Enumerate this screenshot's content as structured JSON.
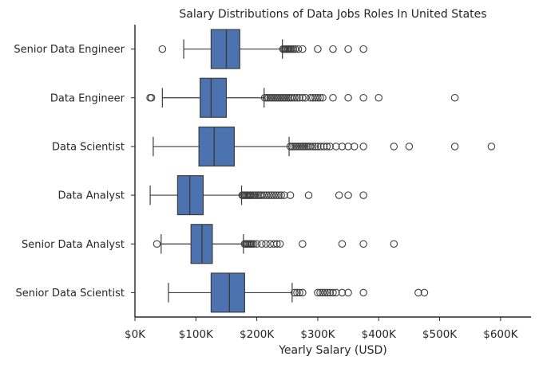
{
  "chart_data": {
    "type": "boxplot",
    "orientation": "horizontal",
    "title": "Salary Distributions of Data Jobs Roles In United States",
    "xlabel": "Yearly Salary (USD)",
    "ylabel": "",
    "xlim": [
      0,
      650000
    ],
    "xticks": [
      0,
      100000,
      200000,
      300000,
      400000,
      500000,
      600000
    ],
    "xtick_labels": [
      "$0K",
      "$100K",
      "$200K",
      "$300K",
      "$400K",
      "$500K",
      "$600K"
    ],
    "grid": false,
    "box_color": "#4c72b0",
    "edge_color": "#3d3d3d",
    "categories": [
      "Senior Data Engineer",
      "Data Engineer",
      "Data Scientist",
      "Data Analyst",
      "Senior Data Analyst",
      "Senior Data Scientist"
    ],
    "boxes": [
      {
        "category": "Senior Data Engineer",
        "whisker_low": 80000,
        "q1": 125000,
        "median": 150000,
        "q3": 172000,
        "whisker_high": 242000,
        "outliers": [
          45000,
          243000,
          245000,
          247000,
          249000,
          251000,
          253000,
          255000,
          257000,
          260000,
          263000,
          268000,
          275000,
          300000,
          325000,
          350000,
          375000
        ]
      },
      {
        "category": "Data Engineer",
        "whisker_low": 45000,
        "q1": 107000,
        "median": 125000,
        "q3": 150000,
        "whisker_high": 212000,
        "outliers": [
          25000,
          27000,
          213000,
          216000,
          219000,
          222000,
          225000,
          228000,
          231000,
          234000,
          237000,
          240000,
          243000,
          246000,
          249000,
          252000,
          255000,
          258000,
          262000,
          266000,
          270000,
          275000,
          280000,
          288000,
          292000,
          296000,
          300000,
          304000,
          308000,
          325000,
          350000,
          375000,
          400000,
          525000
        ]
      },
      {
        "category": "Data Scientist",
        "whisker_low": 30000,
        "q1": 105000,
        "median": 130000,
        "q3": 163000,
        "whisker_high": 253000,
        "outliers": [
          255000,
          258000,
          261000,
          264000,
          267000,
          270000,
          273000,
          276000,
          279000,
          282000,
          285000,
          288000,
          292000,
          296000,
          300000,
          305000,
          310000,
          315000,
          320000,
          330000,
          340000,
          350000,
          360000,
          375000,
          425000,
          450000,
          525000,
          585000
        ]
      },
      {
        "category": "Data Analyst",
        "whisker_low": 25000,
        "q1": 70000,
        "median": 90000,
        "q3": 112000,
        "whisker_high": 175000,
        "outliers": [
          176000,
          178000,
          180000,
          182000,
          184000,
          186000,
          188000,
          190000,
          193000,
          196000,
          199000,
          202000,
          205000,
          208000,
          212000,
          216000,
          220000,
          224000,
          228000,
          232000,
          236000,
          240000,
          245000,
          255000,
          285000,
          335000,
          350000,
          375000
        ]
      },
      {
        "category": "Senior Data Analyst",
        "whisker_low": 43000,
        "q1": 92000,
        "median": 110000,
        "q3": 127000,
        "whisker_high": 178000,
        "outliers": [
          36000,
          180000,
          182000,
          184000,
          186000,
          188000,
          190000,
          192000,
          195000,
          200000,
          208000,
          215000,
          222000,
          228000,
          233000,
          238000,
          275000,
          340000,
          375000,
          425000
        ]
      },
      {
        "category": "Senior Data Scientist",
        "whisker_low": 55000,
        "q1": 125000,
        "median": 155000,
        "q3": 180000,
        "whisker_high": 258000,
        "outliers": [
          262000,
          266000,
          270000,
          275000,
          300000,
          304000,
          308000,
          312000,
          316000,
          320000,
          325000,
          330000,
          340000,
          350000,
          375000,
          465000,
          475000
        ]
      }
    ]
  }
}
